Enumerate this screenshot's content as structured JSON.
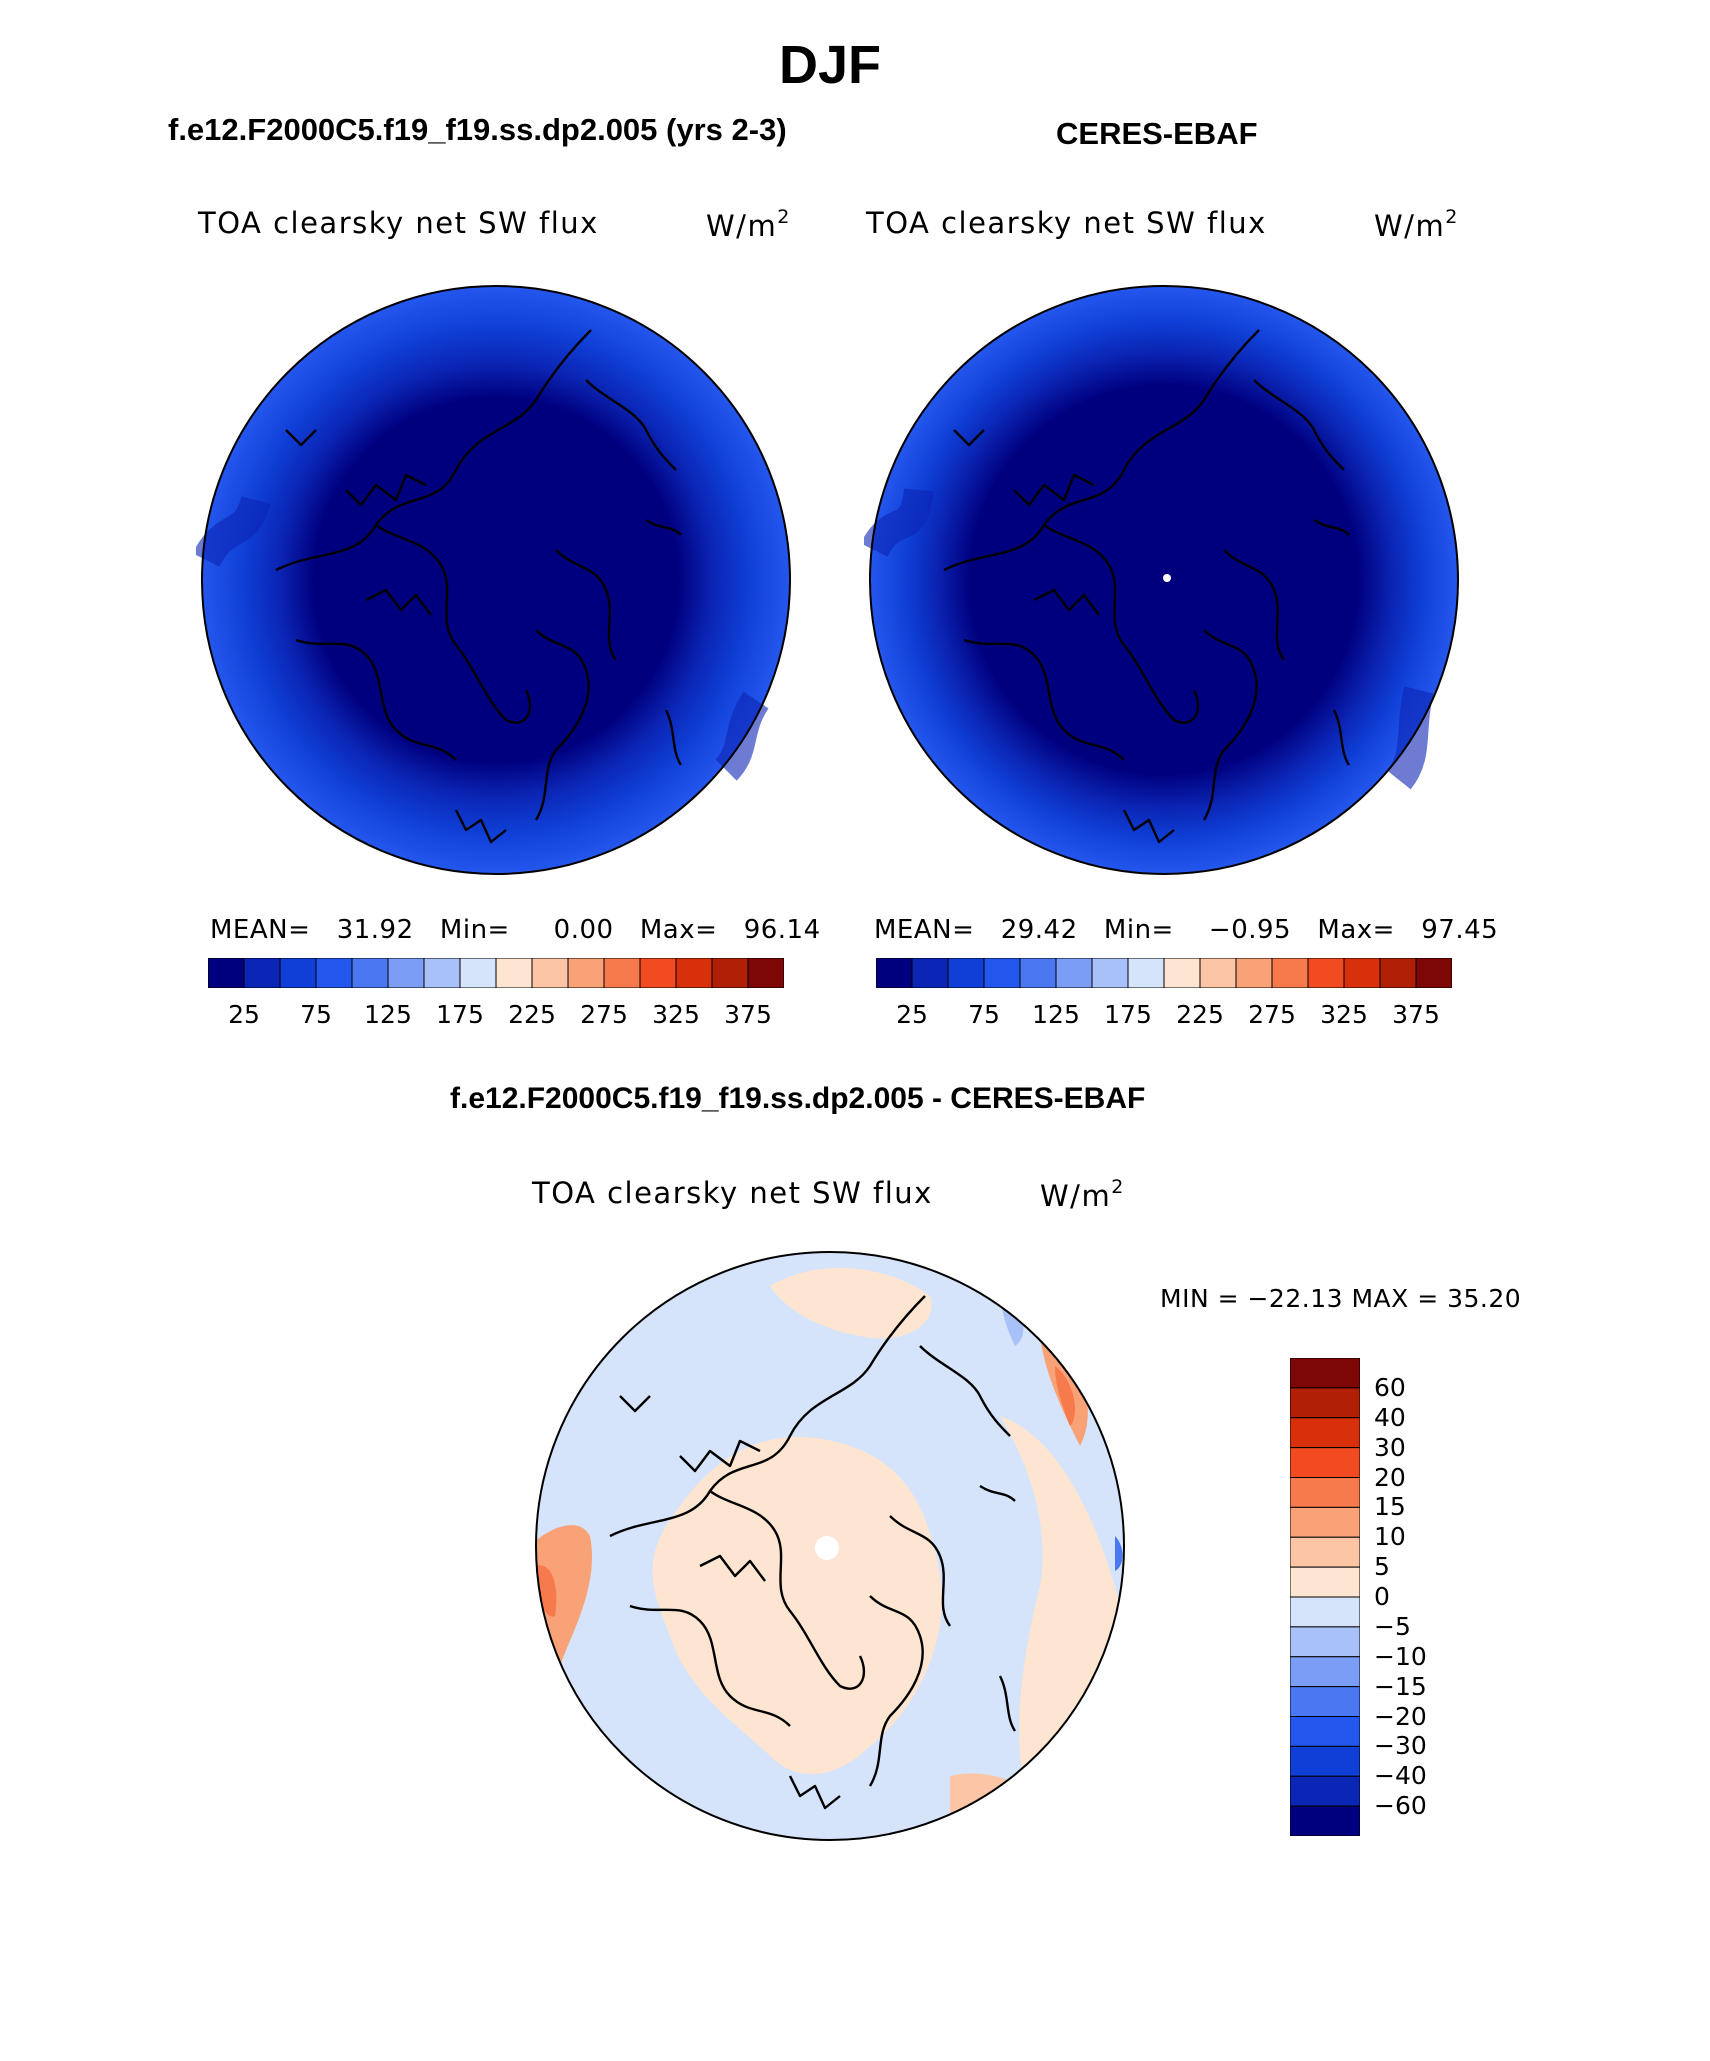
{
  "page": {
    "season": "DJF",
    "test_case": "f.e12.F2000C5.f19_f19.ss.dp2.005 (yrs 2-3)",
    "obs_case": "CERES-EBAF",
    "diff_title": "f.e12.F2000C5.f19_f19.ss.dp2.005 - CERES-EBAF"
  },
  "panels": {
    "model": {
      "var_label": "TOA clearsky net SW flux",
      "units_base": "W/m",
      "units_exp": "2",
      "mean_label": "MEAN=",
      "mean": "31.92",
      "min_label": "Min=",
      "min": "0.00",
      "max_label": "Max=",
      "max": "96.14"
    },
    "obs": {
      "var_label": "TOA clearsky net SW flux",
      "units_base": "W/m",
      "units_exp": "2",
      "mean_label": "MEAN=",
      "mean": "29.42",
      "min_label": "Min=",
      "min": "−0.95",
      "max_label": "Max=",
      "max": "97.45"
    },
    "diff": {
      "var_label": "TOA clearsky net SW flux",
      "units_base": "W/m",
      "units_exp": "2",
      "minmax_text": "MIN = −22.13 MAX =  35.20"
    }
  },
  "colorbars": {
    "abs_labels": [
      "25",
      "75",
      "125",
      "175",
      "225",
      "275",
      "325",
      "375"
    ],
    "abs_colors": [
      "#00007f",
      "#0b25b4",
      "#0f3fd6",
      "#2457ee",
      "#4a78f2",
      "#7b9df5",
      "#a8c1f8",
      "#d5e4fb",
      "#fde5d2",
      "#fcc6a6",
      "#f9a278",
      "#f77a4c",
      "#f24b22",
      "#d9300c",
      "#b11f06",
      "#7d0606"
    ],
    "diff_labels": [
      "60",
      "40",
      "30",
      "20",
      "15",
      "10",
      "5",
      "0",
      "−5",
      "−10",
      "−15",
      "−20",
      "−30",
      "−40",
      "−60"
    ],
    "diff_colors": [
      "#7d0606",
      "#b11f06",
      "#d9300c",
      "#f24b22",
      "#f77a4c",
      "#f9a278",
      "#fcc6a6",
      "#fde5d2",
      "#d5e4fb",
      "#a8c1f8",
      "#7b9df5",
      "#4a78f2",
      "#2457ee",
      "#0f3fd6",
      "#0b25b4",
      "#00007f"
    ]
  }
}
